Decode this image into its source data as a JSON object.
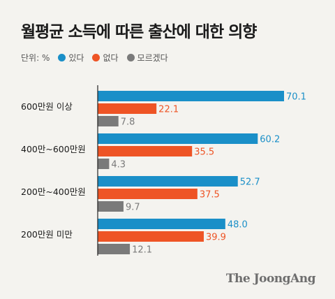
{
  "title": "월평균 소득에 따른 출산에 대한 의향",
  "legend": {
    "unit": "단위: %",
    "items": [
      {
        "label": "있다",
        "color": "#1a8fc8"
      },
      {
        "label": "없다",
        "color": "#ee5425"
      },
      {
        "label": "모르겠다",
        "color": "#7a7a7a"
      }
    ]
  },
  "footer": {
    "logo": "The JoongAng"
  },
  "chart_data": {
    "type": "bar",
    "orientation": "horizontal",
    "categories": [
      "600만원 이상",
      "400만~600만원",
      "200만~400만원",
      "200만원 미만"
    ],
    "series": [
      {
        "name": "있다",
        "color": "#1a8fc8",
        "values": [
          70.1,
          60.2,
          52.7,
          48.0
        ],
        "labels": [
          "70.1",
          "60.2",
          "52.7",
          "48.0"
        ]
      },
      {
        "name": "없다",
        "color": "#ee5425",
        "values": [
          22.1,
          35.5,
          37.5,
          39.9
        ],
        "labels": [
          "22.1",
          "35.5",
          "37.5",
          "39.9"
        ]
      },
      {
        "name": "모르겠다",
        "color": "#7a7a7a",
        "values": [
          7.8,
          4.3,
          9.7,
          12.1
        ],
        "labels": [
          "7.8",
          "4.3",
          "9.7",
          "12.1"
        ]
      }
    ],
    "xlim": [
      0,
      100
    ],
    "grid": false,
    "legend_position": "top-left"
  }
}
